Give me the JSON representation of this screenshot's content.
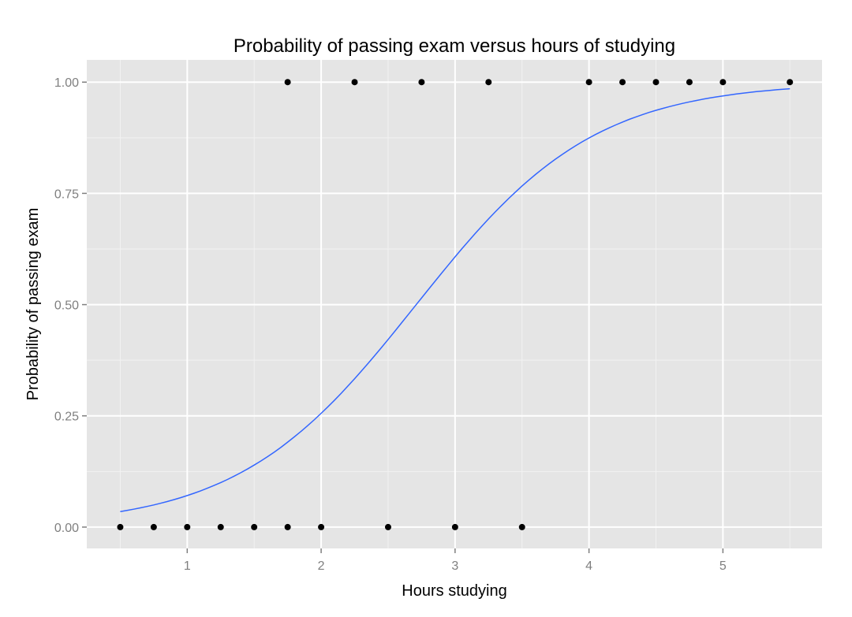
{
  "chart_data": {
    "type": "scatter",
    "title": "Probability of passing exam versus hours of studying",
    "xlabel": "Hours studying",
    "ylabel": "Probability of passing exam",
    "xlim": [
      0.25,
      5.74
    ],
    "ylim": [
      -0.048,
      1.05
    ],
    "x_ticks": [
      1,
      2,
      3,
      4,
      5
    ],
    "x_tick_labels": [
      "1",
      "2",
      "3",
      "4",
      "5"
    ],
    "y_ticks": [
      0,
      0.25,
      0.5,
      0.75,
      1
    ],
    "y_tick_labels": [
      "0.00",
      "0.25",
      "0.50",
      "0.75",
      "1.00"
    ],
    "grid": true,
    "points": {
      "x": [
        0.5,
        0.75,
        1.0,
        1.25,
        1.5,
        1.75,
        1.75,
        2.0,
        2.25,
        2.5,
        2.75,
        3.0,
        3.25,
        3.5,
        4.0,
        4.25,
        4.5,
        4.75,
        5.0,
        5.5
      ],
      "y": [
        0,
        0,
        0,
        0,
        0,
        0,
        1,
        0,
        1,
        0,
        1,
        0,
        1,
        0,
        1,
        1,
        1,
        1,
        1,
        1
      ]
    },
    "fit": {
      "type": "logistic",
      "intercept": -4.0777,
      "slope": 1.5046,
      "x_range": [
        0.5,
        5.5
      ]
    },
    "colors": {
      "panel": "#e5e5e5",
      "grid": "#ffffff",
      "point": "#000000",
      "line": "#3366ff",
      "axis_text": "#7f7f7f"
    }
  }
}
